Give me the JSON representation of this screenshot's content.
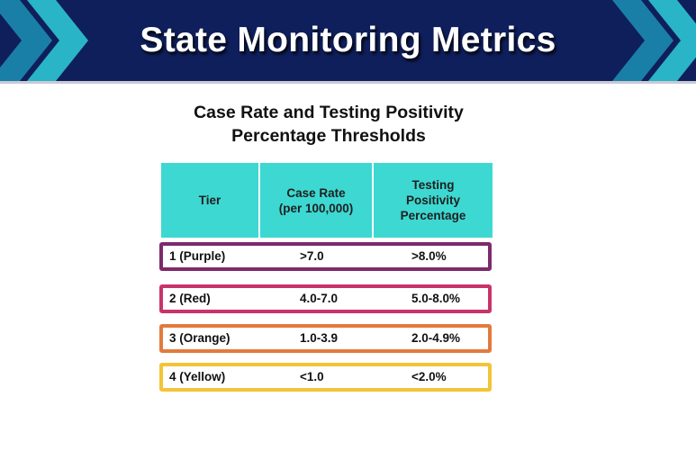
{
  "header": {
    "title": "State Monitoring Metrics",
    "background_color": "#0f1f5c",
    "chevron_colors": [
      "#1a7fa6",
      "#2ab4c8"
    ]
  },
  "subtitle": {
    "line1": "Case Rate and Testing Positivity",
    "line2": "Percentage Thresholds"
  },
  "table": {
    "header_color": "#3dd8d2",
    "columns": [
      "Tier",
      "Case Rate\n(per 100,000)",
      "Testing\nPositivity\nPercentage"
    ],
    "rows": [
      {
        "tier": "1 (Purple)",
        "case_rate": ">7.0",
        "positivity": ">8.0%",
        "color": "#7e2a6c"
      },
      {
        "tier": "2 (Red)",
        "case_rate": "4.0-7.0",
        "positivity": "5.0-8.0%",
        "color": "#c8346a"
      },
      {
        "tier": "3 (Orange)",
        "case_rate": "1.0-3.9",
        "positivity": "2.0-4.9%",
        "color": "#e27a3c"
      },
      {
        "tier": "4 (Yellow)",
        "case_rate": "<1.0",
        "positivity": "<2.0%",
        "color": "#f2c438"
      }
    ]
  }
}
